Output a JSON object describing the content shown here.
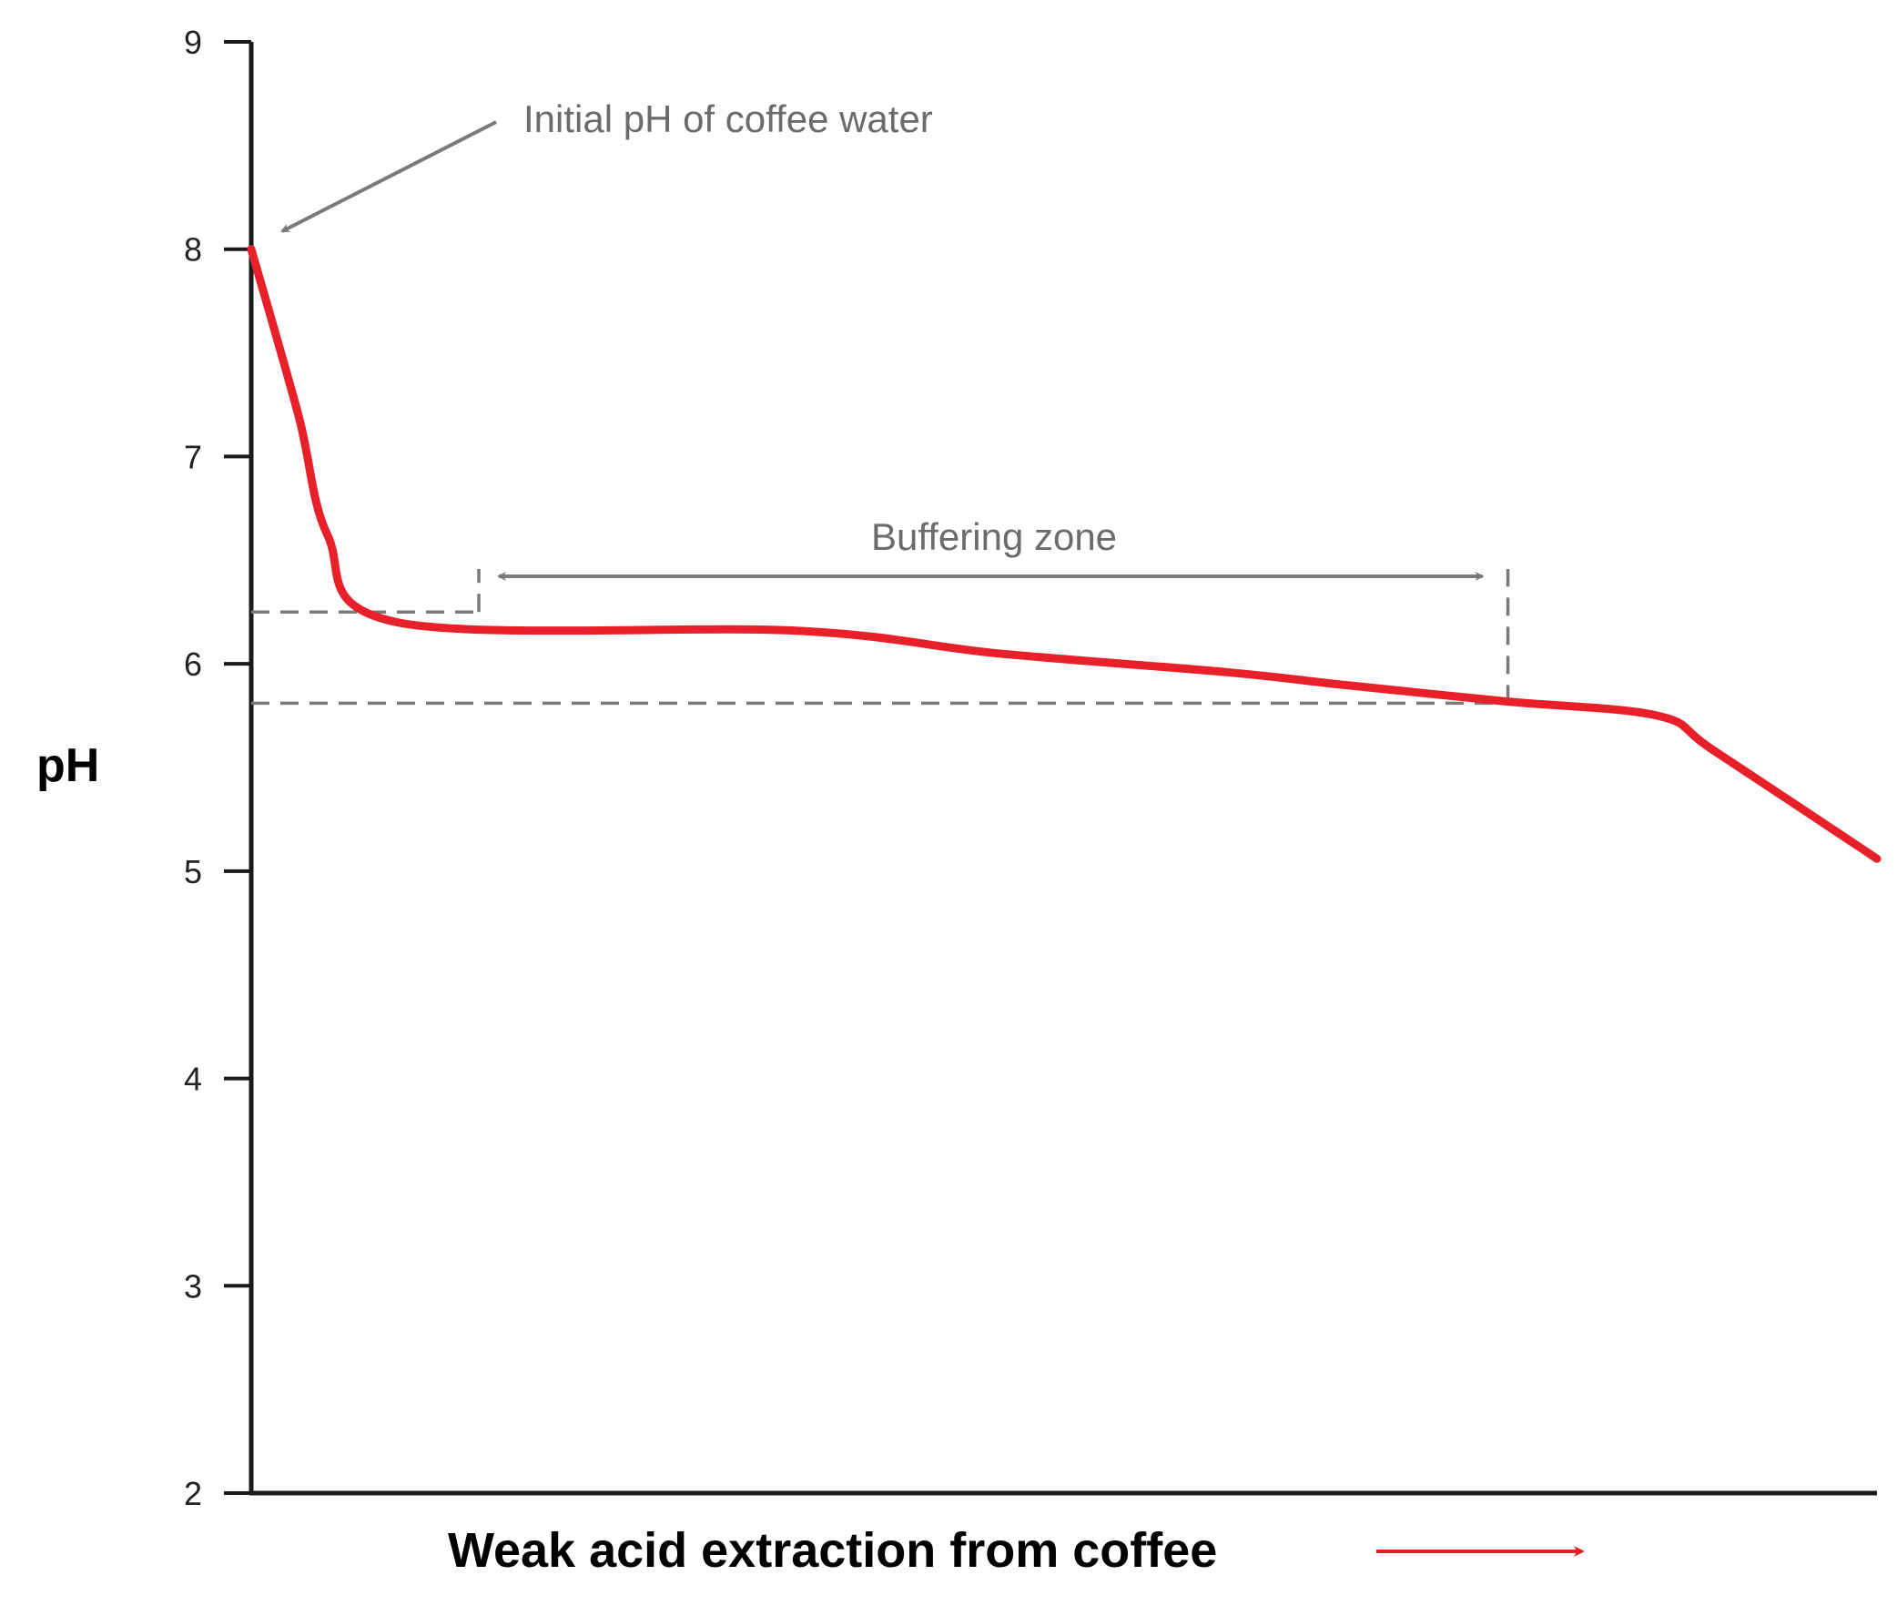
{
  "chart_data": {
    "type": "line",
    "title": "",
    "xlabel": "Weak acid extraction from coffee",
    "ylabel": "pH",
    "ylim": [
      2,
      9
    ],
    "yticks": [
      "2",
      "3",
      "4",
      "5",
      "6",
      "7",
      "8",
      "9"
    ],
    "grid": false,
    "legend": "none",
    "series": [
      {
        "color": "#e8202a",
        "x": [
          0,
          2.9,
          4.7,
          9.0,
          33.5,
          46.0,
          60.0,
          67.0,
          77.0,
          86.5,
          90.0,
          100.0
        ],
        "y": [
          8.0,
          7.2,
          6.62,
          6.2,
          6.16,
          6.05,
          5.96,
          5.9,
          5.82,
          5.75,
          5.58,
          5.06
        ]
      }
    ],
    "annotations": {
      "initial": "Initial pH of coffee water",
      "buffering": "Buffering zone"
    },
    "buffer_zone": {
      "x_start": 14,
      "x_end": 77.3,
      "ph_high": 6.25,
      "ph_low": 5.81
    },
    "colors": {
      "curve": "#e8202a",
      "axis": "#1a1a1a",
      "annotation": "#7a7a7a"
    }
  }
}
